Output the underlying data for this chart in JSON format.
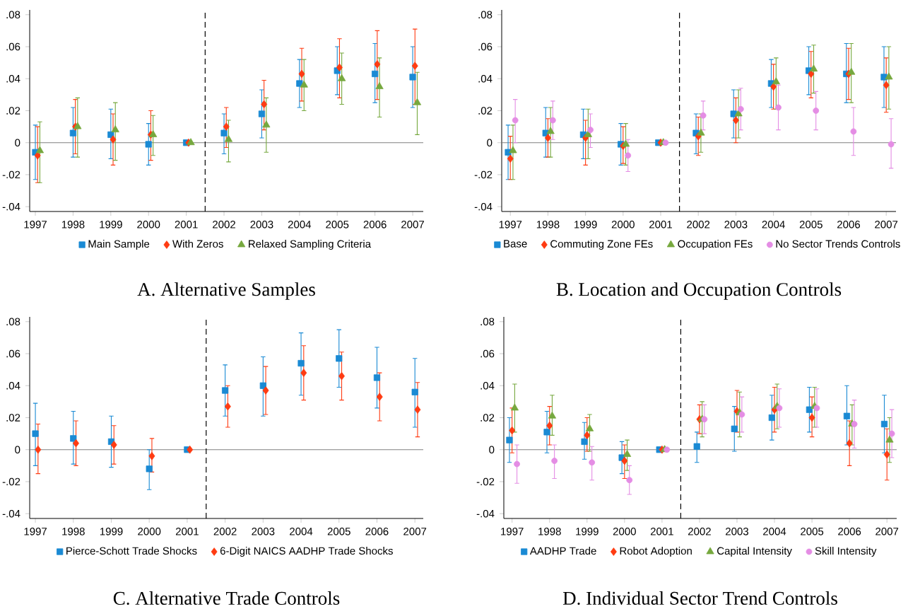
{
  "chart_data": [
    {
      "type": "scatter",
      "title": "A. Alternative Samples",
      "legend": "bottom",
      "xlim": [
        1996.85,
        2007.28
      ],
      "xticks": [
        1997,
        1998,
        1999,
        2000,
        2001,
        2002,
        2003,
        2004,
        2005,
        2006,
        2007
      ],
      "ylim": [
        -0.043,
        0.083
      ],
      "yticks": [
        {
          "value": -0.04,
          "label": "-.04"
        },
        {
          "value": -0.02,
          "label": "-.02"
        },
        0,
        {
          "value": 0.02,
          "label": ".02"
        },
        {
          "value": 0.04,
          "label": ".04"
        },
        {
          "value": 0.06,
          "label": ".06"
        },
        {
          "value": 0.08,
          "label": ".08"
        }
      ],
      "ref_lines": [
        {
          "axis": "y",
          "value": 0,
          "color": "#808080",
          "line_style": "solid"
        },
        {
          "axis": "x",
          "value": 2001.5,
          "color": "#000000",
          "line_style": "dashed"
        }
      ],
      "series": [
        {
          "name": "Main Sample",
          "color": "#1a8ad4",
          "marker": "square",
          "x": [
            1997,
            1998,
            1999,
            2000,
            2001,
            2002,
            2003,
            2004,
            2005,
            2006,
            2007
          ],
          "values": [
            -0.006,
            0.006,
            0.005,
            -0.001,
            0,
            0.006,
            0.018,
            0.037,
            0.045,
            0.043,
            0.041
          ],
          "errors": [
            [
              -0.023,
              0.011
            ],
            [
              -0.009,
              0.022
            ],
            [
              -0.01,
              0.021
            ],
            [
              -0.014,
              0.012
            ],
            null,
            [
              -0.007,
              0.018
            ],
            [
              0.003,
              0.033
            ],
            [
              0.022,
              0.052
            ],
            [
              0.03,
              0.06
            ],
            [
              0.025,
              0.062
            ],
            [
              0.022,
              0.06
            ]
          ]
        },
        {
          "name": "With Zeros",
          "color": "#ff3b12",
          "marker": "diamond",
          "x": [
            1997.06,
            1998.06,
            1999.06,
            2000.06,
            2001.06,
            2002.06,
            2003.06,
            2004.06,
            2005.06,
            2006.06,
            2007.06
          ],
          "values": [
            -0.008,
            0.01,
            0.002,
            0.005,
            0,
            0.01,
            0.024,
            0.043,
            0.047,
            0.049,
            0.048
          ],
          "errors": [
            [
              -0.025,
              0.01
            ],
            [
              -0.007,
              0.027
            ],
            [
              -0.014,
              0.018
            ],
            [
              -0.011,
              0.02
            ],
            null,
            [
              -0.003,
              0.022
            ],
            [
              0.008,
              0.039
            ],
            [
              0.026,
              0.059
            ],
            [
              0.028,
              0.065
            ],
            [
              0.027,
              0.07
            ],
            [
              0.024,
              0.071
            ]
          ]
        },
        {
          "name": "Relaxed Sampling Criteria",
          "color": "#76a83e",
          "marker": "triangle",
          "x": [
            1997.12,
            1998.12,
            1999.12,
            2000.12,
            2001.12,
            2002.12,
            2003.12,
            2004.12,
            2005.12,
            2006.12,
            2007.12
          ],
          "values": [
            -0.005,
            0.01,
            0.008,
            0.005,
            0,
            0.002,
            0.011,
            0.036,
            0.04,
            0.035,
            0.025
          ],
          "errors": [
            [
              -0.025,
              0.013
            ],
            [
              -0.009,
              0.028
            ],
            [
              -0.011,
              0.025
            ],
            [
              -0.008,
              0.017
            ],
            null,
            [
              -0.012,
              0.014
            ],
            [
              -0.006,
              0.028
            ],
            [
              0.02,
              0.052
            ],
            [
              0.024,
              0.056
            ],
            [
              0.016,
              0.053
            ],
            [
              0.005,
              0.044
            ]
          ]
        }
      ]
    },
    {
      "type": "scatter",
      "title": "B. Location and Occupation Controls",
      "legend": "bottom",
      "xlim": [
        1996.77,
        2007.26
      ],
      "xticks": [
        1997,
        1998,
        1999,
        2000,
        2001,
        2002,
        2003,
        2004,
        2005,
        2006,
        2007
      ],
      "ylim": [
        -0.043,
        0.083
      ],
      "yticks": [
        {
          "value": -0.04,
          "label": "-.04"
        },
        {
          "value": -0.02,
          "label": "-.02"
        },
        0,
        {
          "value": 0.02,
          "label": ".02"
        },
        {
          "value": 0.04,
          "label": ".04"
        },
        {
          "value": 0.06,
          "label": ".06"
        },
        {
          "value": 0.08,
          "label": ".08"
        }
      ],
      "ref_lines": [
        {
          "axis": "y",
          "value": 0,
          "color": "#808080",
          "line_style": "solid"
        },
        {
          "axis": "x",
          "value": 2001.5,
          "color": "#000000",
          "line_style": "dashed"
        }
      ],
      "series": [
        {
          "name": "Base",
          "color": "#1a8ad4",
          "marker": "square",
          "x": [
            1996.94,
            1997.94,
            1998.94,
            1999.94,
            2000.94,
            2001.94,
            2002.94,
            2003.94,
            2004.94,
            2005.94,
            2006.94
          ],
          "values": [
            -0.006,
            0.006,
            0.005,
            -0.001,
            0,
            0.006,
            0.018,
            0.037,
            0.045,
            0.043,
            0.041
          ],
          "errors": [
            [
              -0.023,
              0.011
            ],
            [
              -0.009,
              0.022
            ],
            [
              -0.01,
              0.021
            ],
            [
              -0.014,
              0.012
            ],
            null,
            [
              -0.007,
              0.018
            ],
            [
              0.003,
              0.033
            ],
            [
              0.022,
              0.052
            ],
            [
              0.03,
              0.06
            ],
            [
              0.025,
              0.062
            ],
            [
              0.022,
              0.06
            ]
          ]
        },
        {
          "name": "Commuting Zone FEs",
          "color": "#ff3b12",
          "marker": "diamond",
          "x": [
            1997,
            1998,
            1999,
            2000,
            2001,
            2002,
            2003,
            2004,
            2005,
            2006,
            2007
          ],
          "values": [
            -0.01,
            0.003,
            0.003,
            -0.002,
            0,
            0.004,
            0.014,
            0.035,
            0.043,
            0.043,
            0.036
          ],
          "errors": [
            [
              -0.023,
              0.004
            ],
            [
              -0.009,
              0.015
            ],
            [
              -0.014,
              0.014
            ],
            [
              -0.013,
              0.01
            ],
            null,
            [
              -0.008,
              0.016
            ],
            [
              0.0,
              0.028
            ],
            [
              0.021,
              0.049
            ],
            [
              0.028,
              0.057
            ],
            [
              0.027,
              0.059
            ],
            [
              0.019,
              0.053
            ]
          ]
        },
        {
          "name": "Occupation FEs",
          "color": "#76a83e",
          "marker": "triangle",
          "x": [
            1997.07,
            1998.07,
            1999.07,
            2000.07,
            2001.07,
            2002.07,
            2003.07,
            2004.07,
            2005.07,
            2006.07,
            2007.07
          ],
          "values": [
            -0.005,
            0.007,
            0.005,
            -0.001,
            0,
            0.006,
            0.018,
            0.038,
            0.046,
            0.044,
            0.041
          ],
          "errors": [
            [
              -0.023,
              0.011
            ],
            [
              -0.009,
              0.022
            ],
            [
              -0.01,
              0.021
            ],
            [
              -0.014,
              0.012
            ],
            null,
            [
              -0.006,
              0.018
            ],
            [
              0.003,
              0.033
            ],
            [
              0.021,
              0.053
            ],
            [
              0.031,
              0.061
            ],
            [
              0.025,
              0.062
            ],
            [
              0.021,
              0.06
            ]
          ]
        },
        {
          "name": "No Sector Trends Controls",
          "color": "#e48de4",
          "marker": "circle",
          "x": [
            1997.13,
            1998.13,
            1999.13,
            2000.13,
            2001.13,
            2002.13,
            2003.13,
            2004.13,
            2005.13,
            2006.13,
            2007.13
          ],
          "values": [
            0.014,
            0.014,
            0.008,
            -0.008,
            0,
            0.017,
            0.021,
            0.022,
            0.02,
            0.007,
            -0.001
          ],
          "errors": [
            [
              0.0,
              0.027
            ],
            [
              0.002,
              0.026
            ],
            [
              -0.003,
              0.018
            ],
            [
              -0.018,
              0.002
            ],
            null,
            [
              0.008,
              0.026
            ],
            [
              0.008,
              0.034
            ],
            [
              0.008,
              0.036
            ],
            [
              0.008,
              0.032
            ],
            [
              -0.008,
              0.022
            ],
            [
              -0.016,
              0.015
            ]
          ]
        }
      ]
    },
    {
      "type": "scatter",
      "title": "C. Alternative Trade Controls",
      "legend": "bottom",
      "xlim": [
        1996.85,
        2007.22
      ],
      "xticks": [
        1997,
        1998,
        1999,
        2000,
        2001,
        2002,
        2003,
        2004,
        2005,
        2006,
        2007
      ],
      "ylim": [
        -0.043,
        0.083
      ],
      "yticks": [
        {
          "value": -0.04,
          "label": "-.04"
        },
        {
          "value": -0.02,
          "label": "-.02"
        },
        0,
        {
          "value": 0.02,
          "label": ".02"
        },
        {
          "value": 0.04,
          "label": ".04"
        },
        {
          "value": 0.06,
          "label": ".06"
        },
        {
          "value": 0.08,
          "label": ".08"
        }
      ],
      "ref_lines": [
        {
          "axis": "y",
          "value": 0,
          "color": "#808080",
          "line_style": "solid"
        },
        {
          "axis": "x",
          "value": 2001.5,
          "color": "#000000",
          "line_style": "dashed"
        }
      ],
      "series": [
        {
          "name": "Pierce-Schott Trade Shocks",
          "color": "#1a8ad4",
          "marker": "square",
          "x": [
            1997,
            1998,
            1999,
            2000,
            2001,
            2002,
            2003,
            2004,
            2005,
            2006,
            2007
          ],
          "values": [
            0.01,
            0.007,
            0.005,
            -0.012,
            0,
            0.037,
            0.04,
            0.054,
            0.057,
            0.045,
            0.036
          ],
          "errors": [
            [
              -0.01,
              0.029
            ],
            [
              -0.009,
              0.024
            ],
            [
              -0.011,
              0.021
            ],
            [
              -0.025,
              0.0
            ],
            null,
            [
              0.021,
              0.053
            ],
            [
              0.021,
              0.058
            ],
            [
              0.034,
              0.073
            ],
            [
              0.039,
              0.075
            ],
            [
              0.026,
              0.064
            ],
            [
              0.014,
              0.057
            ]
          ]
        },
        {
          "name": "6-Digit NAICS AADHP Trade Shocks",
          "color": "#ff3b12",
          "marker": "diamond",
          "x": [
            1997.07,
            1998.07,
            1999.07,
            2000.07,
            2001.07,
            2002.07,
            2003.07,
            2004.07,
            2005.07,
            2006.07,
            2007.07
          ],
          "values": [
            0.0,
            0.004,
            0.003,
            -0.004,
            0,
            0.027,
            0.037,
            0.048,
            0.046,
            0.033,
            0.025
          ],
          "errors": [
            [
              -0.015,
              0.016
            ],
            [
              -0.01,
              0.018
            ],
            [
              -0.009,
              0.015
            ],
            [
              -0.014,
              0.007
            ],
            null,
            [
              0.014,
              0.04
            ],
            [
              0.022,
              0.052
            ],
            [
              0.031,
              0.065
            ],
            [
              0.031,
              0.061
            ],
            [
              0.018,
              0.048
            ],
            [
              0.008,
              0.042
            ]
          ]
        }
      ]
    },
    {
      "type": "scatter",
      "title": "D. Individual Sector Trend Controls",
      "legend": "bottom",
      "xlim": [
        1996.78,
        2007.26
      ],
      "xticks": [
        1997,
        1998,
        1999,
        2000,
        2001,
        2002,
        2003,
        2004,
        2005,
        2006,
        2007
      ],
      "ylim": [
        -0.043,
        0.083
      ],
      "yticks": [
        {
          "value": -0.04,
          "label": "-.04"
        },
        {
          "value": -0.02,
          "label": "-.02"
        },
        0,
        {
          "value": 0.02,
          "label": ".02"
        },
        {
          "value": 0.04,
          "label": ".04"
        },
        {
          "value": 0.06,
          "label": ".06"
        },
        {
          "value": 0.08,
          "label": ".08"
        }
      ],
      "ref_lines": [
        {
          "axis": "y",
          "value": 0,
          "color": "#808080",
          "line_style": "solid"
        },
        {
          "axis": "x",
          "value": 2001.5,
          "color": "#000000",
          "line_style": "dashed"
        }
      ],
      "series": [
        {
          "name": "AADHP Trade",
          "color": "#1a8ad4",
          "marker": "square",
          "x": [
            1996.93,
            1997.93,
            1998.93,
            1999.93,
            2000.93,
            2001.93,
            2002.93,
            2003.93,
            2004.93,
            2005.93,
            2006.93
          ],
          "values": [
            0.006,
            0.011,
            0.005,
            -0.005,
            0,
            0.002,
            0.013,
            0.02,
            0.025,
            0.021,
            0.016
          ],
          "errors": [
            [
              -0.008,
              0.02
            ],
            [
              -0.002,
              0.024
            ],
            [
              -0.006,
              0.017
            ],
            [
              -0.015,
              0.005
            ],
            null,
            [
              -0.008,
              0.011
            ],
            [
              -0.001,
              0.027
            ],
            [
              0.006,
              0.034
            ],
            [
              0.011,
              0.039
            ],
            [
              0.003,
              0.04
            ],
            [
              -0.002,
              0.034
            ]
          ]
        },
        {
          "name": "Robot Adoption",
          "color": "#ff3b12",
          "marker": "diamond",
          "x": [
            1997,
            1998,
            1999,
            2000,
            2001,
            2002,
            2003,
            2004,
            2005,
            2006,
            2007
          ],
          "values": [
            0.012,
            0.015,
            0.009,
            -0.007,
            0,
            0.019,
            0.024,
            0.025,
            0.02,
            0.004,
            -0.003
          ],
          "errors": [
            [
              -0.002,
              0.026
            ],
            [
              0.003,
              0.027
            ],
            [
              -0.001,
              0.02
            ],
            [
              -0.018,
              0.003
            ],
            null,
            [
              0.01,
              0.028
            ],
            [
              0.011,
              0.037
            ],
            [
              0.011,
              0.039
            ],
            [
              0.008,
              0.033
            ],
            [
              -0.01,
              0.018
            ],
            [
              -0.019,
              0.013
            ]
          ]
        },
        {
          "name": "Capital Intensity",
          "color": "#76a83e",
          "marker": "triangle",
          "x": [
            1997.07,
            1998.07,
            1999.07,
            2000.07,
            2001.07,
            2002.07,
            2003.07,
            2004.07,
            2005.07,
            2006.07,
            2007.07
          ],
          "values": [
            0.026,
            0.021,
            0.013,
            -0.003,
            0,
            0.019,
            0.023,
            0.027,
            0.027,
            0.016,
            0.006
          ],
          "errors": [
            [
              0.011,
              0.041
            ],
            [
              0.009,
              0.034
            ],
            [
              -0.001,
              0.022
            ],
            [
              -0.013,
              0.006
            ],
            null,
            [
              0.008,
              0.03
            ],
            [
              0.008,
              0.036
            ],
            [
              0.013,
              0.041
            ],
            [
              0.014,
              0.039
            ],
            [
              0.003,
              0.028
            ],
            [
              -0.008,
              0.02
            ]
          ]
        },
        {
          "name": "Skill Intensity",
          "color": "#e48de4",
          "marker": "circle",
          "x": [
            1997.13,
            1998.13,
            1999.13,
            2000.13,
            2001.13,
            2002.13,
            2003.13,
            2004.13,
            2005.13,
            2006.13,
            2007.13
          ],
          "values": [
            -0.009,
            -0.007,
            -0.008,
            -0.019,
            0,
            0.019,
            0.022,
            0.026,
            0.026,
            0.016,
            0.01
          ],
          "errors": [
            [
              -0.021,
              0.003
            ],
            [
              -0.018,
              0.003
            ],
            [
              -0.019,
              0.002
            ],
            [
              -0.028,
              -0.01
            ],
            null,
            [
              0.01,
              0.028
            ],
            [
              0.011,
              0.033
            ],
            [
              0.014,
              0.038
            ],
            [
              0.014,
              0.038
            ],
            [
              0.001,
              0.031
            ],
            [
              -0.005,
              0.025
            ]
          ]
        }
      ]
    }
  ]
}
